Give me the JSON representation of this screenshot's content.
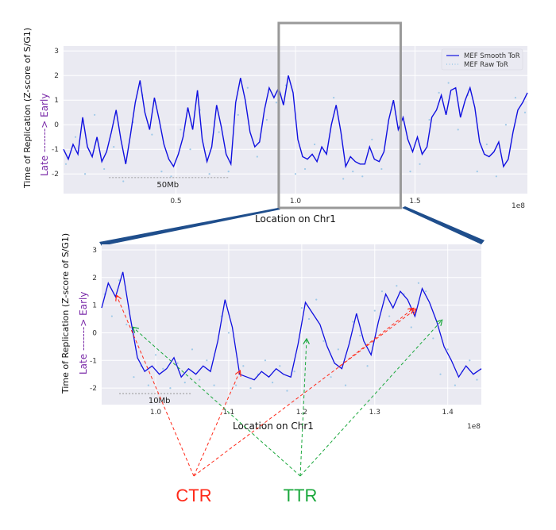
{
  "colors": {
    "smooth": "#1010e0",
    "raw": "#9ec9e8",
    "panel_bg": "#eaeaf2",
    "ctr": "#ff2a1a",
    "ttr": "#1aa83c",
    "late_early": "#7a2aa8",
    "zoom_box": "#999999",
    "connector": "#1f4e8c"
  },
  "annotations": {
    "ctr": "CTR",
    "ttr": "TTR"
  },
  "chart_data": [
    {
      "type": "line",
      "xlabel": "Location on Chr1",
      "ylabel": "Time of Replication (Z-score of S/G1)",
      "ylabel_late": "Late",
      "ylabel_arrow": " -------> ",
      "ylabel_early": "Early",
      "x_offset_text": "1e8",
      "xlim": [
        0.03,
        1.97
      ],
      "ylim": [
        -2.8,
        3.2
      ],
      "xticks": [
        {
          "value": 0.5,
          "label": "0.5"
        },
        {
          "value": 1.0,
          "label": "1.0"
        },
        {
          "value": 1.5,
          "label": "1.5"
        }
      ],
      "yticks": [
        {
          "value": -2,
          "label": "-2"
        },
        {
          "value": -1,
          "label": "-1"
        },
        {
          "value": 0,
          "label": "0"
        },
        {
          "value": 1,
          "label": "1"
        },
        {
          "value": 2,
          "label": "2"
        },
        {
          "value": 3,
          "label": "3"
        }
      ],
      "scale_bar": {
        "label": "50Mb",
        "x0": 0.22,
        "x1": 0.72,
        "y": -2.15
      },
      "zoom_box": {
        "x0": 0.93,
        "x1": 1.44
      },
      "legend": {
        "position": "top-right",
        "entries": [
          "MEF Smooth ToR",
          "MEF Raw ToR"
        ]
      },
      "series": [
        {
          "name": "MEF Smooth ToR",
          "style": "solid",
          "x": [
            0.03,
            0.05,
            0.07,
            0.09,
            0.11,
            0.13,
            0.15,
            0.17,
            0.19,
            0.21,
            0.23,
            0.25,
            0.27,
            0.29,
            0.31,
            0.33,
            0.35,
            0.37,
            0.39,
            0.41,
            0.43,
            0.45,
            0.47,
            0.49,
            0.51,
            0.53,
            0.55,
            0.57,
            0.59,
            0.61,
            0.63,
            0.65,
            0.67,
            0.69,
            0.71,
            0.73,
            0.75,
            0.77,
            0.79,
            0.81,
            0.83,
            0.85,
            0.87,
            0.89,
            0.91,
            0.93,
            0.95,
            0.97,
            0.99,
            1.01,
            1.03,
            1.05,
            1.07,
            1.09,
            1.11,
            1.13,
            1.15,
            1.17,
            1.19,
            1.21,
            1.23,
            1.25,
            1.27,
            1.29,
            1.31,
            1.33,
            1.35,
            1.37,
            1.39,
            1.41,
            1.43,
            1.45,
            1.47,
            1.49,
            1.51,
            1.53,
            1.55,
            1.57,
            1.59,
            1.61,
            1.63,
            1.65,
            1.67,
            1.69,
            1.71,
            1.73,
            1.75,
            1.77,
            1.79,
            1.81,
            1.83,
            1.85,
            1.87,
            1.89,
            1.91,
            1.93,
            1.95,
            1.97
          ],
          "y": [
            -1.0,
            -1.4,
            -0.8,
            -1.2,
            0.3,
            -0.9,
            -1.3,
            -0.5,
            -1.5,
            -1.1,
            -0.3,
            0.6,
            -0.6,
            -1.6,
            -0.4,
            0.9,
            1.8,
            0.5,
            -0.2,
            1.1,
            0.2,
            -0.8,
            -1.4,
            -1.7,
            -1.2,
            -0.5,
            0.7,
            -0.2,
            1.4,
            -0.6,
            -1.5,
            -0.9,
            0.8,
            -0.1,
            -1.2,
            -1.6,
            0.9,
            1.9,
            1.0,
            -0.3,
            -0.9,
            -0.7,
            0.6,
            1.5,
            1.1,
            1.5,
            0.8,
            2.0,
            1.3,
            -0.6,
            -1.3,
            -1.4,
            -1.2,
            -1.5,
            -0.9,
            -1.2,
            0.0,
            0.8,
            -0.3,
            -1.7,
            -1.3,
            -1.5,
            -1.6,
            -1.6,
            -0.9,
            -1.4,
            -1.5,
            -1.1,
            0.2,
            1.0,
            -0.2,
            0.3,
            -0.6,
            -1.1,
            -0.5,
            -1.2,
            -0.9,
            0.3,
            0.6,
            1.2,
            0.4,
            1.4,
            1.5,
            0.3,
            1.0,
            1.5,
            0.7,
            -0.7,
            -1.2,
            -1.3,
            -1.1,
            -0.7,
            -1.7,
            -1.4,
            -0.3,
            0.6,
            0.9,
            1.3
          ]
        },
        {
          "name": "MEF Raw ToR",
          "style": "dots",
          "x": [
            0.04,
            0.08,
            0.12,
            0.16,
            0.2,
            0.24,
            0.28,
            0.32,
            0.36,
            0.4,
            0.44,
            0.48,
            0.52,
            0.56,
            0.6,
            0.64,
            0.68,
            0.72,
            0.76,
            0.8,
            0.84,
            0.88,
            0.92,
            0.96,
            1.0,
            1.04,
            1.08,
            1.12,
            1.16,
            1.2,
            1.24,
            1.28,
            1.32,
            1.36,
            1.4,
            1.44,
            1.48,
            1.52,
            1.56,
            1.6,
            1.64,
            1.68,
            1.72,
            1.76,
            1.8,
            1.84,
            1.88,
            1.92,
            1.96
          ],
          "y": [
            -1.6,
            -0.5,
            -2.0,
            0.4,
            -1.8,
            -0.9,
            -2.3,
            0.1,
            1.2,
            -0.4,
            -1.9,
            -2.1,
            -0.2,
            -1.0,
            0.6,
            -2.0,
            -0.3,
            -1.9,
            0.4,
            1.5,
            -1.3,
            0.2,
            0.9,
            1.6,
            -2.0,
            -1.8,
            -0.8,
            -1.1,
            1.1,
            -2.2,
            -1.9,
            -2.1,
            -0.6,
            -1.8,
            0.6,
            -0.4,
            -1.9,
            -1.6,
            0.2,
            1.3,
            1.7,
            -0.2,
            1.2,
            -1.9,
            -0.8,
            -2.1,
            0.0,
            1.1,
            0.5
          ]
        }
      ]
    },
    {
      "type": "line",
      "xlabel": "Location on Chr1",
      "ylabel": "Time of Replication (Z-score of S/G1)",
      "ylabel_late": "Late",
      "ylabel_arrow": " -------> ",
      "ylabel_early": "Early",
      "x_offset_text": "1e8",
      "xlim": [
        0.926,
        1.446
      ],
      "ylim": [
        -2.6,
        3.2
      ],
      "xticks": [
        {
          "value": 1.0,
          "label": "1.0"
        },
        {
          "value": 1.1,
          "label": "1.1"
        },
        {
          "value": 1.2,
          "label": "1.2"
        },
        {
          "value": 1.3,
          "label": "1.3"
        },
        {
          "value": 1.4,
          "label": "1.4"
        }
      ],
      "yticks": [
        {
          "value": -2,
          "label": "-2"
        },
        {
          "value": -1,
          "label": "-1"
        },
        {
          "value": 0,
          "label": "0"
        },
        {
          "value": 1,
          "label": "1"
        },
        {
          "value": 2,
          "label": "2"
        },
        {
          "value": 3,
          "label": "3"
        }
      ],
      "scale_bar": {
        "label": "10Mb",
        "x0": 0.95,
        "x1": 1.05,
        "y": -2.2
      },
      "series": [
        {
          "name": "MEF Smooth ToR",
          "style": "solid",
          "x": [
            0.926,
            0.935,
            0.945,
            0.955,
            0.965,
            0.975,
            0.985,
            0.995,
            1.005,
            1.015,
            1.025,
            1.035,
            1.045,
            1.055,
            1.065,
            1.075,
            1.085,
            1.095,
            1.105,
            1.115,
            1.125,
            1.135,
            1.145,
            1.155,
            1.165,
            1.175,
            1.185,
            1.195,
            1.205,
            1.215,
            1.225,
            1.235,
            1.245,
            1.255,
            1.265,
            1.275,
            1.285,
            1.295,
            1.305,
            1.315,
            1.325,
            1.335,
            1.345,
            1.355,
            1.365,
            1.375,
            1.385,
            1.395,
            1.405,
            1.415,
            1.425,
            1.435,
            1.446
          ],
          "y": [
            0.9,
            1.8,
            1.3,
            2.2,
            0.6,
            -0.9,
            -1.4,
            -1.2,
            -1.5,
            -1.3,
            -0.9,
            -1.6,
            -1.3,
            -1.5,
            -1.2,
            -1.4,
            -0.3,
            1.2,
            0.2,
            -1.5,
            -1.6,
            -1.7,
            -1.4,
            -1.6,
            -1.3,
            -1.5,
            -1.6,
            -0.4,
            1.1,
            0.7,
            0.3,
            -0.5,
            -1.1,
            -1.3,
            -0.4,
            0.7,
            -0.3,
            -0.8,
            0.4,
            1.4,
            0.9,
            1.5,
            1.2,
            0.6,
            1.6,
            1.1,
            0.4,
            -0.5,
            -1.0,
            -1.6,
            -1.2,
            -1.5,
            -1.3
          ]
        },
        {
          "name": "MEF Raw ToR",
          "style": "dots",
          "x": [
            0.93,
            0.94,
            0.95,
            0.96,
            0.97,
            0.98,
            0.99,
            1.0,
            1.01,
            1.02,
            1.03,
            1.04,
            1.05,
            1.06,
            1.07,
            1.08,
            1.09,
            1.1,
            1.11,
            1.12,
            1.13,
            1.14,
            1.15,
            1.16,
            1.17,
            1.18,
            1.19,
            1.2,
            1.21,
            1.22,
            1.23,
            1.24,
            1.25,
            1.26,
            1.27,
            1.28,
            1.29,
            1.3,
            1.31,
            1.32,
            1.33,
            1.34,
            1.35,
            1.36,
            1.37,
            1.38,
            1.39,
            1.4,
            1.41,
            1.42,
            1.43,
            1.44
          ],
          "y": [
            1.4,
            0.6,
            1.9,
            0.3,
            -1.6,
            -1.2,
            -1.9,
            -0.8,
            -1.3,
            -2.0,
            -1.1,
            -1.8,
            -0.6,
            -1.7,
            -1.0,
            -1.9,
            0.6,
            0.0,
            -1.9,
            -1.2,
            -2.0,
            -1.5,
            -1.0,
            -1.8,
            -1.2,
            -2.1,
            -1.4,
            0.9,
            0.5,
            1.2,
            -0.3,
            -1.6,
            -0.6,
            -1.9,
            0.4,
            -0.1,
            -1.2,
            0.8,
            1.5,
            0.6,
            1.7,
            1.4,
            0.2,
            1.8,
            1.5,
            -0.2,
            -1.5,
            -0.6,
            -1.9,
            -1.4,
            -1.0,
            -1.7
          ]
        }
      ]
    }
  ]
}
